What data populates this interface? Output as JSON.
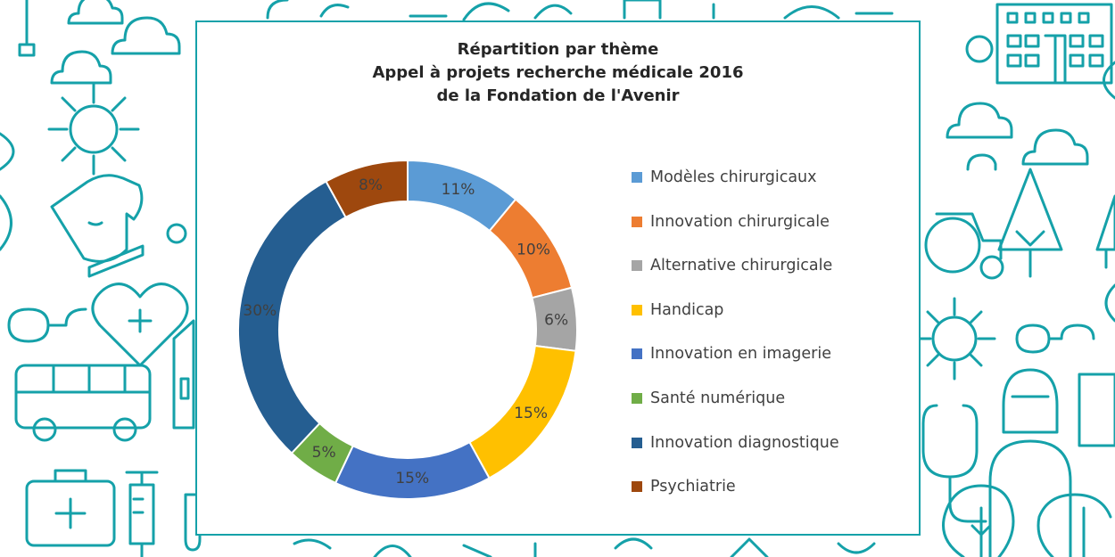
{
  "chart_data": {
    "type": "pie",
    "donut": true,
    "title_lines": [
      "Répartition par thème",
      "Appel à projets recherche médicale 2016",
      "de la Fondation de l'Avenir"
    ],
    "legend_position": "right",
    "slices": [
      {
        "label": "Modèles chirurgicaux",
        "value": 11,
        "display": "11%",
        "color": "#5b9bd5"
      },
      {
        "label": "Innovation chirurgicale",
        "value": 10,
        "display": "10%",
        "color": "#ed7d31"
      },
      {
        "label": "Alternative chirurgicale",
        "value": 6,
        "display": "6%",
        "color": "#a5a5a5"
      },
      {
        "label": "Handicap",
        "value": 15,
        "display": "15%",
        "color": "#ffc000"
      },
      {
        "label": "Innovation en imagerie",
        "value": 15,
        "display": "15%",
        "color": "#4472c4"
      },
      {
        "label": "Santé numérique",
        "value": 5,
        "display": "5%",
        "color": "#70ad47"
      },
      {
        "label": "Innovation diagnostique",
        "value": 30,
        "display": "30%",
        "color": "#255e91"
      },
      {
        "label": "Psychiatrie",
        "value": 8,
        "display": "8%",
        "color": "#9e480e"
      }
    ]
  },
  "background": {
    "pattern_color": "#15a1a9"
  }
}
